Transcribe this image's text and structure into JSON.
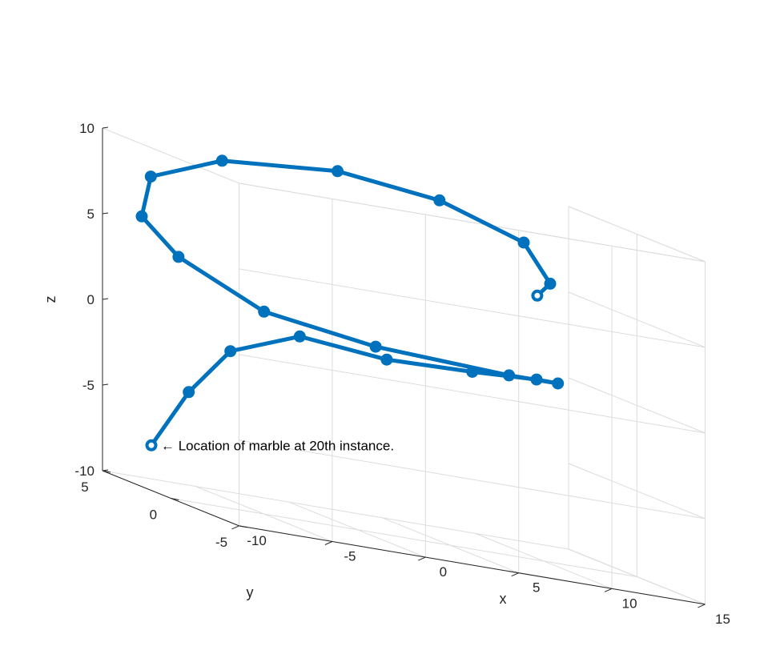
{
  "chart_data": {
    "type": "line3d",
    "title": "",
    "xlabel": "x",
    "ylabel": "y",
    "zlabel": "z",
    "xlim": [
      -10,
      15
    ],
    "ylim": [
      -5,
      5
    ],
    "zlim": [
      -10,
      10
    ],
    "xticks": [
      -10,
      -5,
      0,
      5,
      10,
      15
    ],
    "yticks": [
      -5,
      0,
      5
    ],
    "zticks": [
      -10,
      -5,
      0,
      5,
      10
    ],
    "grid": true,
    "series_color": "#0072BD",
    "annotation": {
      "text": "← Location of marble at 20th instance.",
      "point_index": 0
    },
    "points": [
      {
        "x": -8.7,
        "y": 3.2,
        "z": -7.7,
        "marker": "open"
      },
      {
        "x": -6.4,
        "y": 3.6,
        "z": -4.3,
        "marker": "filled"
      },
      {
        "x": -3.8,
        "y": 4.1,
        "z": -1.6,
        "marker": "filled"
      },
      {
        "x": -0.3,
        "y": 3.8,
        "z": 0.0,
        "marker": "filled"
      },
      {
        "x": 4.0,
        "y": 3.3,
        "z": -0.4,
        "marker": "filled"
      },
      {
        "x": 8.3,
        "y": 2.9,
        "z": -0.2,
        "marker": "filled"
      },
      {
        "x": 10.5,
        "y": 1.2,
        "z": 0.3,
        "marker": "filled"
      },
      {
        "x": 10.4,
        "y": -0.5,
        "z": 0.6,
        "marker": "filled"
      },
      {
        "x": 5.8,
        "y": -3.2,
        "z": 1.1,
        "marker": "filled"
      },
      {
        "x": -1.5,
        "y": -3.4,
        "z": 1.5,
        "marker": "filled"
      },
      {
        "x": -6.9,
        "y": -2.6,
        "z": 2.3,
        "marker": "filled"
      },
      {
        "x": -10.1,
        "y": -0.7,
        "z": 4.3,
        "marker": "filled"
      },
      {
        "x": -10.9,
        "y": 0.9,
        "z": 6.0,
        "marker": "filled"
      },
      {
        "x": -8.8,
        "y": 3.1,
        "z": 8.0,
        "marker": "filled"
      },
      {
        "x": -4.1,
        "y": 4.3,
        "z": 9.4,
        "marker": "filled"
      },
      {
        "x": 1.8,
        "y": 3.9,
        "z": 10.0,
        "marker": "filled"
      },
      {
        "x": 6.1,
        "y": 2.3,
        "z": 9.6,
        "marker": "filled"
      },
      {
        "x": 9.3,
        "y": 0.5,
        "z": 8.3,
        "marker": "filled"
      },
      {
        "x": 9.4,
        "y": -1.3,
        "z": 6.5,
        "marker": "filled"
      },
      {
        "x": 9.0,
        "y": -0.9,
        "z": 5.6,
        "marker": "open"
      }
    ]
  }
}
